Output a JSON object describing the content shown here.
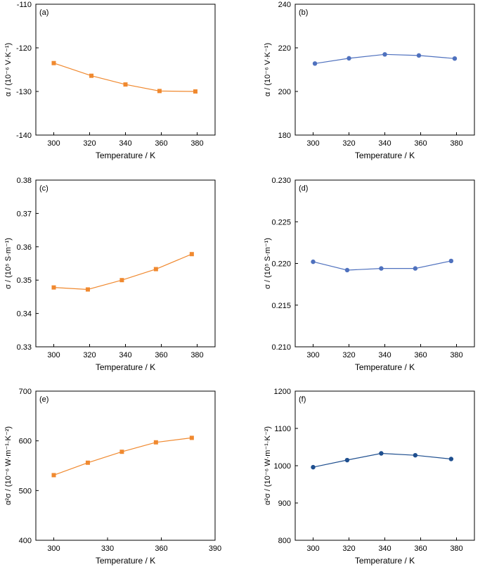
{
  "chart_data": [
    {
      "type": "line",
      "panel_label": "(a)",
      "xlabel": "Temperature / K",
      "ylabel": "α / (10⁻⁶ V·K⁻¹)",
      "xlim": [
        290,
        390
      ],
      "ylim": [
        -140,
        -110
      ],
      "xticks": [
        300,
        320,
        340,
        360,
        380
      ],
      "yticks": [
        -140,
        -130,
        -120,
        -110
      ],
      "marker": "square",
      "color": "#f0892f",
      "series": [
        {
          "x": [
            300,
            321,
            340,
            359,
            379
          ],
          "y": [
            -123.5,
            -126.4,
            -128.4,
            -129.9,
            -130.0
          ]
        }
      ]
    },
    {
      "type": "line",
      "panel_label": "(b)",
      "xlabel": "Temperature / K",
      "ylabel": "α / (10⁻⁶ V·K⁻¹)",
      "xlim": [
        290,
        390
      ],
      "ylim": [
        180,
        240
      ],
      "xticks": [
        300,
        320,
        340,
        360,
        380
      ],
      "yticks": [
        180,
        200,
        220,
        240
      ],
      "marker": "circle",
      "color": "#4f71be",
      "series": [
        {
          "x": [
            301,
            320,
            340,
            359,
            379
          ],
          "y": [
            212.8,
            215.2,
            217.0,
            216.5,
            215.1
          ]
        }
      ]
    },
    {
      "type": "line",
      "panel_label": "(c)",
      "xlabel": "Temperature / K",
      "ylabel": "σ / (10⁵ S·m⁻¹)",
      "xlim": [
        290,
        390
      ],
      "ylim": [
        0.33,
        0.38
      ],
      "xticks": [
        300,
        320,
        340,
        360,
        380
      ],
      "yticks": [
        0.33,
        0.34,
        0.35,
        0.36,
        0.37,
        0.38
      ],
      "marker": "square",
      "color": "#f0892f",
      "series": [
        {
          "x": [
            300,
            319,
            338,
            357,
            377
          ],
          "y": [
            0.3478,
            0.3472,
            0.35,
            0.3533,
            0.3578
          ]
        }
      ]
    },
    {
      "type": "line",
      "panel_label": "(d)",
      "xlabel": "Temperature / K",
      "ylabel": "σ / (10⁵ S·m⁻¹)",
      "xlim": [
        290,
        390
      ],
      "ylim": [
        0.21,
        0.23
      ],
      "xticks": [
        300,
        320,
        340,
        360,
        380
      ],
      "yticks": [
        0.21,
        0.215,
        0.22,
        0.225,
        0.23
      ],
      "ytick_labels": [
        "0.210",
        "0.215",
        "0.220",
        "0.225",
        "0.230"
      ],
      "marker": "circle",
      "color": "#4f71be",
      "series": [
        {
          "x": [
            300,
            319,
            338,
            357,
            377
          ],
          "y": [
            0.2202,
            0.2192,
            0.2194,
            0.2194,
            0.2203
          ]
        }
      ]
    },
    {
      "type": "line",
      "panel_label": "(e)",
      "xlabel": "Temperature / K",
      "ylabel": "α²σ / (10⁻⁶ W·m⁻¹·K⁻²)",
      "xlim": [
        290,
        390
      ],
      "ylim": [
        400,
        700
      ],
      "xticks": [
        300,
        330,
        360,
        390
      ],
      "yticks": [
        400,
        500,
        600,
        700
      ],
      "marker": "square",
      "color": "#f0892f",
      "series": [
        {
          "x": [
            300,
            319,
            338,
            357,
            377
          ],
          "y": [
            531,
            556,
            578,
            597,
            606
          ]
        }
      ]
    },
    {
      "type": "line",
      "panel_label": "(f)",
      "xlabel": "Temperature / K",
      "ylabel": "α²σ / (10⁻⁶ W·m⁻¹·K⁻²)",
      "xlim": [
        290,
        390
      ],
      "ylim": [
        800,
        1200
      ],
      "xticks": [
        300,
        320,
        340,
        360,
        380
      ],
      "yticks": [
        800,
        900,
        1000,
        1100,
        1200
      ],
      "marker": "circle",
      "color": "#1f4f8f",
      "series": [
        {
          "x": [
            300,
            319,
            338,
            357,
            377
          ],
          "y": [
            996,
            1015,
            1033,
            1028,
            1018
          ]
        }
      ]
    }
  ]
}
